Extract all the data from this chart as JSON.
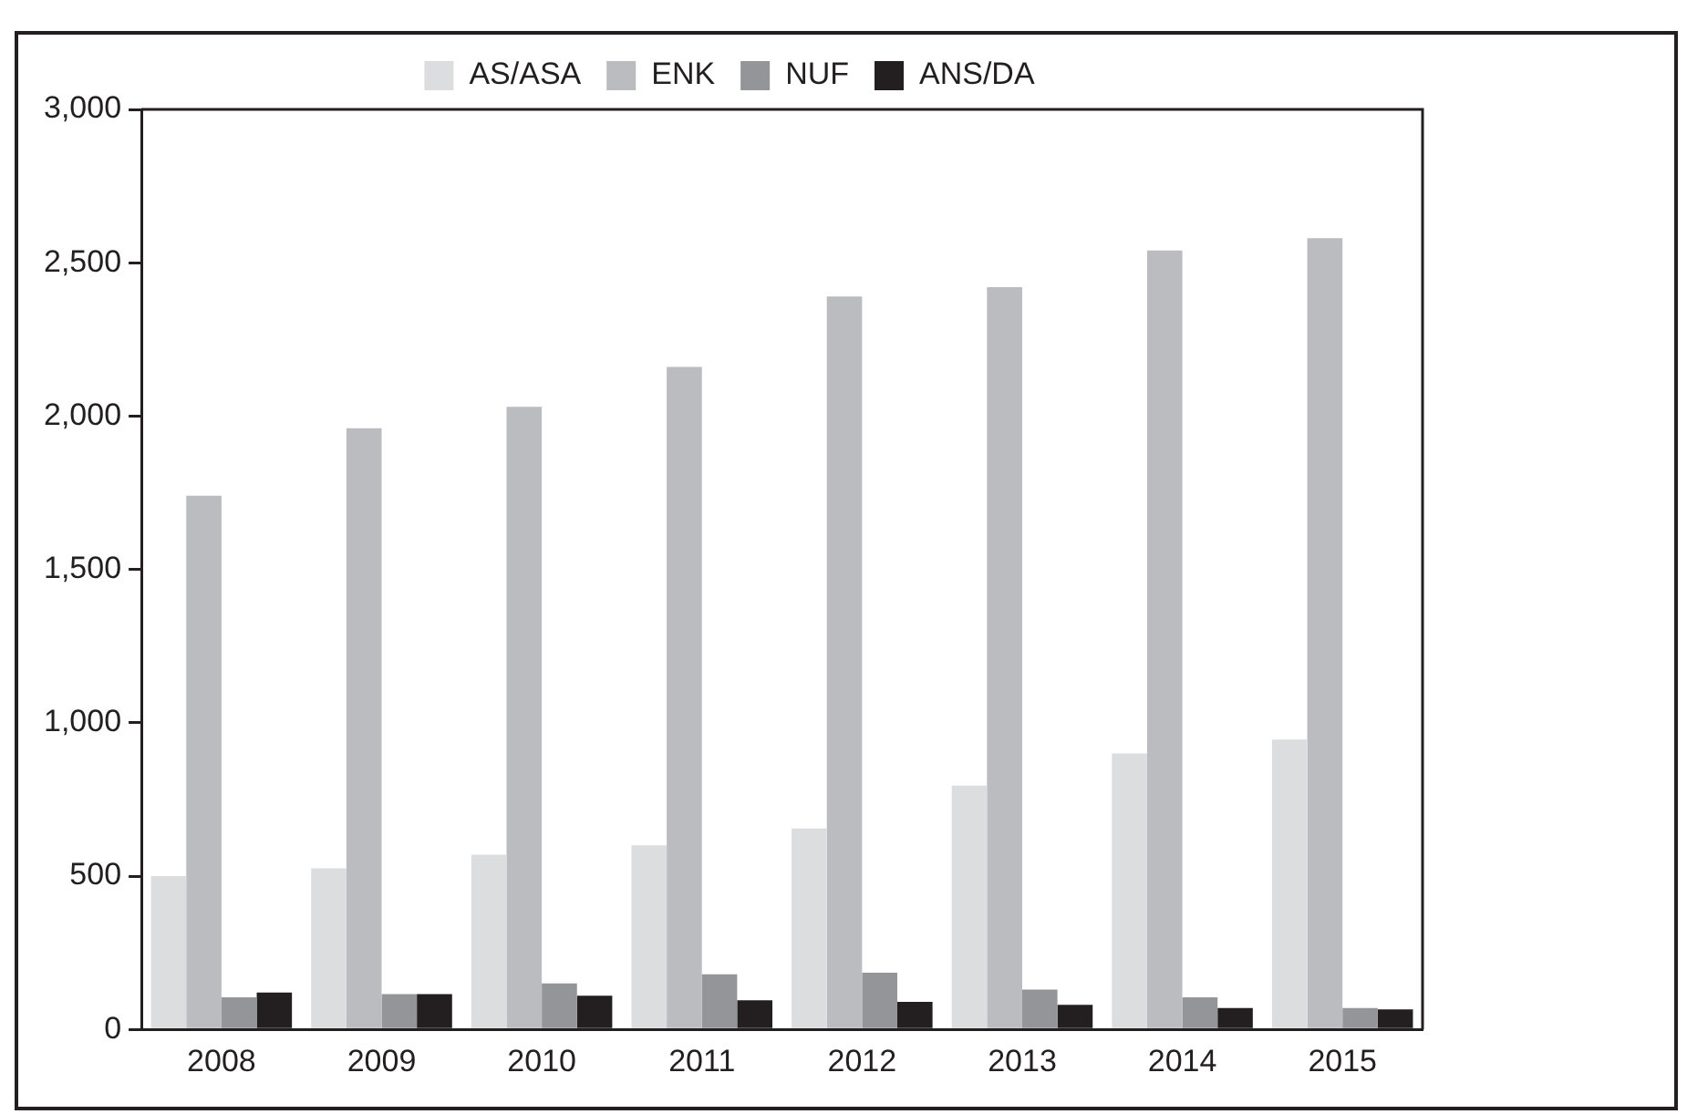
{
  "chart_data": {
    "type": "bar",
    "categories": [
      "2008",
      "2009",
      "2010",
      "2011",
      "2012",
      "2013",
      "2014",
      "2015"
    ],
    "series": [
      {
        "name": "AS/ASA",
        "color": "#dcdddf",
        "values": [
          500,
          525,
          570,
          600,
          655,
          795,
          900,
          945
        ]
      },
      {
        "name": "ENK",
        "color": "#bbbcc0",
        "values": [
          1740,
          1960,
          2030,
          2160,
          2390,
          2420,
          2540,
          2580
        ]
      },
      {
        "name": "NUF",
        "color": "#939598",
        "values": [
          105,
          115,
          150,
          180,
          185,
          130,
          105,
          70
        ]
      },
      {
        "name": "ANS/DA",
        "color": "#231f20",
        "values": [
          120,
          115,
          110,
          95,
          90,
          80,
          70,
          65
        ]
      }
    ],
    "ylim": [
      0,
      3000
    ],
    "yticks": [
      0,
      500,
      {
        "value": 1000,
        "label": "1,000"
      },
      {
        "value": 1500,
        "label": "1,500"
      },
      {
        "value": 2000,
        "label": "2,000"
      },
      {
        "value": 2500,
        "label": "2,500"
      },
      {
        "value": 3000,
        "label": "3,000"
      }
    ],
    "legend": "top"
  }
}
